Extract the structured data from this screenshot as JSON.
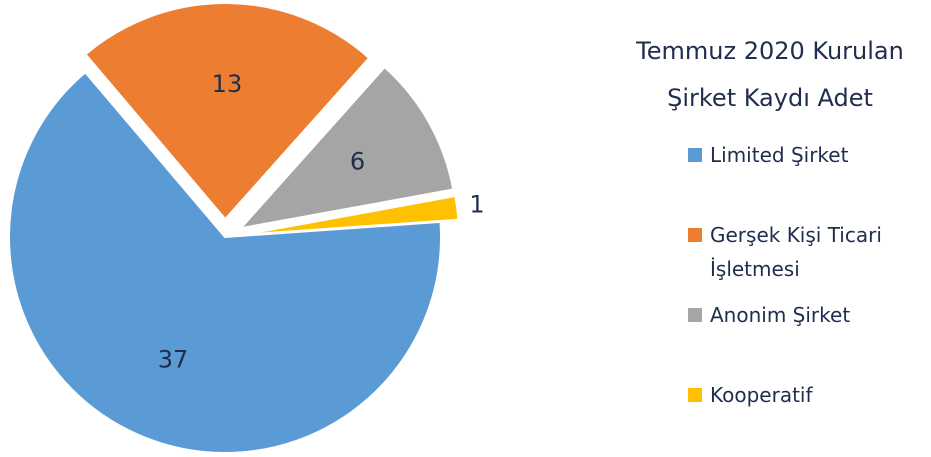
{
  "chart_data": {
    "type": "pie",
    "title": "Temmuz 2020 Kurulan Şirket Kaydı Adet",
    "categories": [
      "Limited Şirket",
      "Gerşek Kişi Ticari İşletmesi",
      "Anonim Şirket",
      "Kooperatif"
    ],
    "values": [
      37,
      13,
      6,
      1
    ],
    "colors": [
      "#5b9bd5",
      "#ed7d31",
      "#a5a5a5",
      "#ffc000"
    ],
    "legend": "right"
  }
}
